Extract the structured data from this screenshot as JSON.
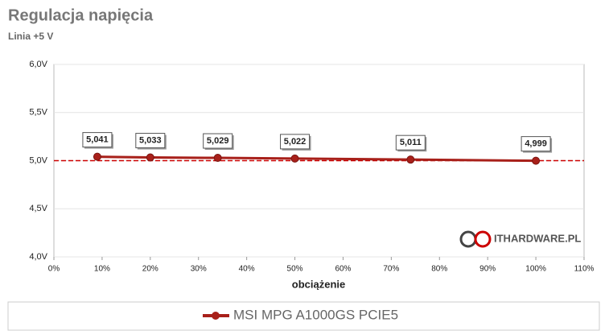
{
  "chart_data": {
    "type": "line",
    "title": "Regulacja napięcia",
    "subtitle": "Linia +5 V",
    "x_label": "obciążenie",
    "watermark": "ITHARDWARE.PL",
    "x": [
      9,
      20,
      34,
      50,
      74,
      100
    ],
    "series": [
      {
        "name": "MSI MPG A1000GS PCIE5",
        "color": "#a8201a",
        "values": [
          5.041,
          5.033,
          5.029,
          5.022,
          5.011,
          4.999
        ],
        "value_labels": [
          "5,041",
          "5,033",
          "5,029",
          "5,022",
          "5,011",
          "4,999"
        ]
      }
    ],
    "xlim": [
      0,
      110
    ],
    "xticks": [
      {
        "value": 0,
        "label": "0%"
      },
      {
        "value": 10,
        "label": "10%"
      },
      {
        "value": 20,
        "label": "20%"
      },
      {
        "value": 30,
        "label": "30%"
      },
      {
        "value": 40,
        "label": "40%"
      },
      {
        "value": 50,
        "label": "50%"
      },
      {
        "value": 60,
        "label": "60%"
      },
      {
        "value": 70,
        "label": "70%"
      },
      {
        "value": 80,
        "label": "80%"
      },
      {
        "value": 90,
        "label": "90%"
      },
      {
        "value": 100,
        "label": "100%"
      },
      {
        "value": 110,
        "label": "110%"
      }
    ],
    "ylim": [
      4,
      6
    ],
    "yticks": [
      {
        "value": 4,
        "label": "4,0V"
      },
      {
        "value": 4.5,
        "label": "4,5V"
      },
      {
        "value": 5,
        "label": "5,0V"
      },
      {
        "value": 5.5,
        "label": "5,5V"
      },
      {
        "value": 6,
        "label": "6,0V"
      }
    ],
    "reference_line": 5,
    "reference_color": "#cc0000",
    "grid": true,
    "legend": "bottom"
  }
}
